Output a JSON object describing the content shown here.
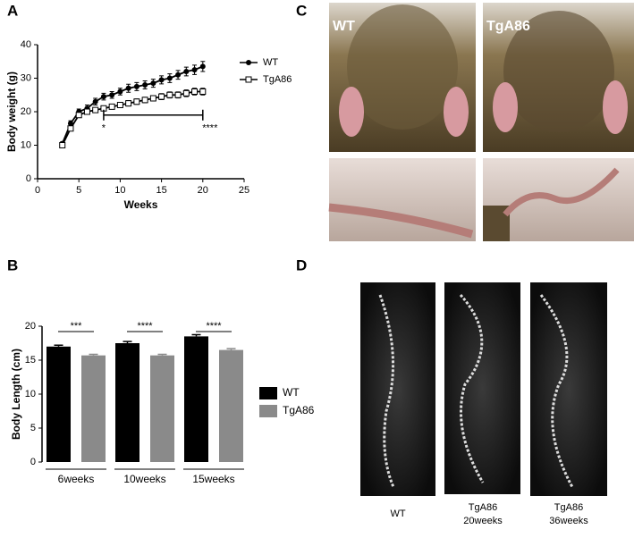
{
  "panel_labels": [
    "A",
    "B",
    "C",
    "D"
  ],
  "chart_data": [
    {
      "type": "line",
      "xlabel": "Weeks",
      "ylabel": "Body weight (g)",
      "x": [
        3,
        4,
        5,
        6,
        7,
        8,
        9,
        10,
        11,
        12,
        13,
        14,
        15,
        16,
        17,
        18,
        19,
        20
      ],
      "series": [
        {
          "name": "WT",
          "color": "#000000",
          "marker": "circle",
          "values": [
            10.5,
            16.5,
            20,
            21,
            23,
            24.5,
            25,
            26,
            27,
            27.5,
            28,
            28.5,
            29.5,
            30,
            31,
            32,
            32.5,
            33.5
          ],
          "errors": [
            0.5,
            0.8,
            0.8,
            1,
            1,
            1,
            1,
            1,
            1.2,
            1.2,
            1.2,
            1.2,
            1.2,
            1.3,
            1.3,
            1.3,
            1.4,
            1.5
          ]
        },
        {
          "name": "TgA86",
          "color": "#000000",
          "marker": "square",
          "values": [
            10,
            15,
            19,
            20,
            20.5,
            21,
            21.5,
            22,
            22.5,
            23,
            23.5,
            24,
            24.5,
            25,
            25,
            25.5,
            26,
            26
          ],
          "errors": [
            0.4,
            0.6,
            0.6,
            0.7,
            0.7,
            0.7,
            0.7,
            0.8,
            0.8,
            0.8,
            0.8,
            0.8,
            0.9,
            0.9,
            0.9,
            1,
            1,
            1
          ]
        }
      ],
      "bracket": {
        "x": [
          8,
          20
        ],
        "y": 19,
        "labels": [
          "*",
          "****"
        ]
      },
      "xlim": [
        0,
        25
      ],
      "xticks": [
        0,
        5,
        10,
        15,
        20,
        25
      ],
      "ylim": [
        0,
        40
      ],
      "yticks": [
        0,
        10,
        20,
        30,
        40
      ],
      "legend": "right"
    },
    {
      "type": "bar",
      "ylabel": "Body Length (cm)",
      "categories": [
        "6weeks",
        "10weeks",
        "15weeks"
      ],
      "series": [
        {
          "name": "WT",
          "color": "#000000",
          "values": [
            17,
            17.5,
            18.5
          ],
          "errors": [
            0.2,
            0.25,
            0.25
          ]
        },
        {
          "name": "TgA86",
          "color": "#8a8a8a",
          "values": [
            15.7,
            15.7,
            16.5
          ],
          "errors": [
            0.15,
            0.15,
            0.2
          ]
        }
      ],
      "significance": [
        "***",
        "****",
        "****"
      ],
      "ylim": [
        0,
        20
      ],
      "yticks": [
        0,
        5,
        10,
        15,
        20
      ],
      "legend": "right"
    }
  ],
  "photos": {
    "labels": [
      "WT",
      "TgA86"
    ]
  },
  "ct_scans": {
    "labels": [
      [
        "WT"
      ],
      [
        "TgA86",
        "20weeks"
      ],
      [
        "TgA86",
        "36weeks"
      ]
    ]
  }
}
